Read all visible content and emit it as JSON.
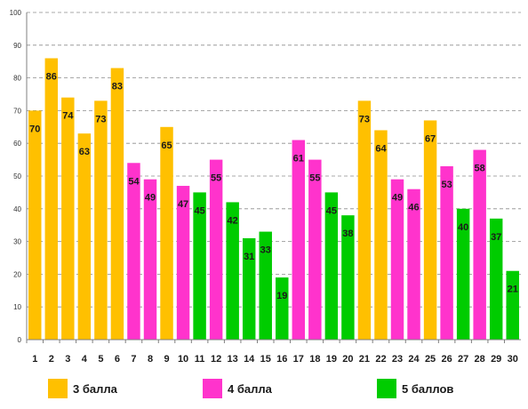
{
  "chart_data": {
    "type": "bar",
    "categories": [
      "1",
      "2",
      "3",
      "4",
      "5",
      "6",
      "7",
      "8",
      "9",
      "10",
      "11",
      "12",
      "13",
      "14",
      "15",
      "16",
      "17",
      "18",
      "19",
      "20",
      "21",
      "22",
      "23",
      "24",
      "25",
      "26",
      "27",
      "28",
      "29",
      "30"
    ],
    "values": [
      70,
      86,
      74,
      63,
      73,
      83,
      54,
      49,
      65,
      47,
      45,
      55,
      42,
      31,
      33,
      19,
      61,
      55,
      45,
      38,
      73,
      64,
      49,
      46,
      67,
      53,
      40,
      58,
      37,
      21
    ],
    "groups": [
      "3 балла",
      "3 балла",
      "3 балла",
      "3 балла",
      "3 балла",
      "3 балла",
      "4 балла",
      "4 балла",
      "3 балла",
      "4 балла",
      "5 баллов",
      "4 балла",
      "5 баллов",
      "5 баллов",
      "5 баллов",
      "5 баллов",
      "4 балла",
      "4 балла",
      "5 баллов",
      "5 баллов",
      "3 балла",
      "3 балла",
      "4 балла",
      "4 балла",
      "3 балла",
      "4 балла",
      "5 баллов",
      "4 балла",
      "5 баллов",
      "5 баллов"
    ],
    "ylim": [
      0,
      100
    ],
    "yticks": [
      0,
      10,
      20,
      30,
      40,
      50,
      60,
      70,
      80,
      90,
      100
    ],
    "grid": true,
    "legend_position": "bottom",
    "legend": [
      {
        "label": "3 балла",
        "color": "#FFC000"
      },
      {
        "label": "4 балла",
        "color": "#FF33CC"
      },
      {
        "label": "5 баллов",
        "color": "#00CC00"
      }
    ]
  }
}
